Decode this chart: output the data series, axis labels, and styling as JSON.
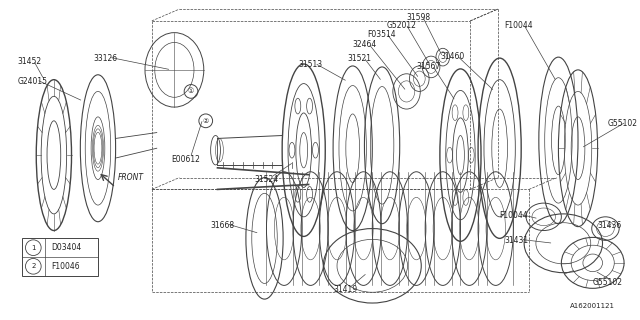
{
  "bg_color": "#ffffff",
  "fig_id": "A162001121",
  "line_color": "#444444",
  "text_color": "#222222",
  "font_size": 5.5,
  "legend_items": [
    {
      "symbol": "1",
      "text": "D03404"
    },
    {
      "symbol": "2",
      "text": "F10046"
    }
  ]
}
